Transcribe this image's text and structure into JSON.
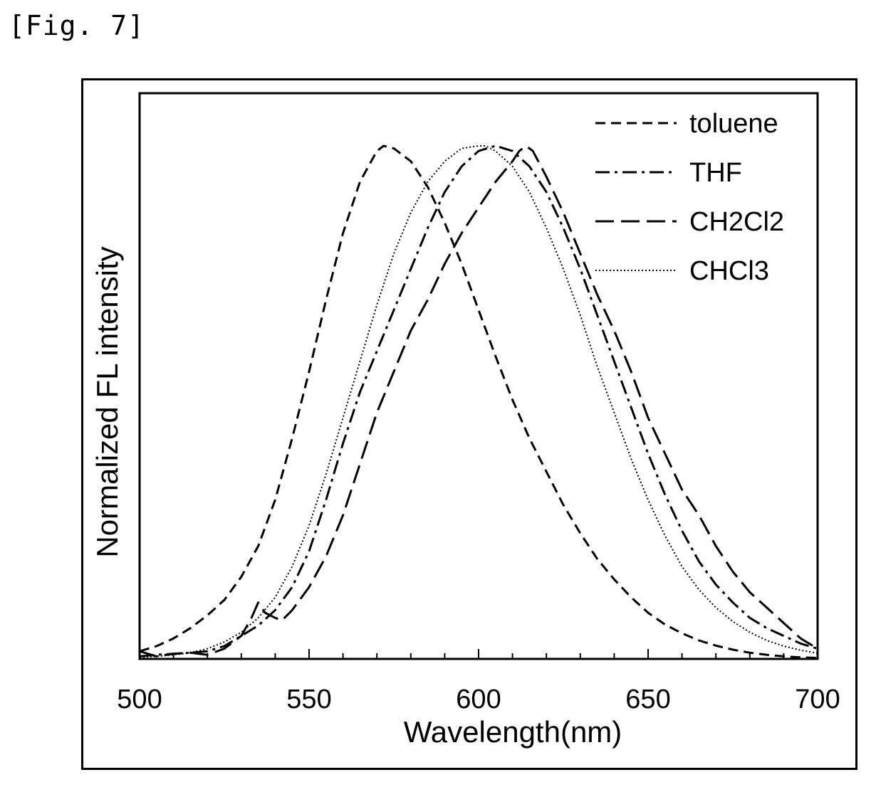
{
  "figure": {
    "label": "[Fig. 7]"
  },
  "chart_data": {
    "type": "line",
    "title": "",
    "xlabel": "Wavelength(nm)",
    "ylabel": "Normalized FL intensity",
    "xlim": [
      500,
      700
    ],
    "ylim": [
      0,
      1.0
    ],
    "x_ticks": [
      500,
      550,
      600,
      650,
      700
    ],
    "x_tick_labels": [
      "500",
      "550",
      "600",
      "650",
      "700"
    ],
    "grid": false,
    "legend_position": "top-right",
    "series": [
      {
        "name": "toluene",
        "style": "short-dash",
        "x": [
          500,
          505,
          510,
          515,
          520,
          525,
          530,
          535,
          540,
          545,
          550,
          555,
          560,
          565,
          570,
          572,
          575,
          580,
          585,
          590,
          595,
          600,
          605,
          610,
          615,
          620,
          625,
          630,
          635,
          640,
          645,
          650,
          655,
          660,
          665,
          670,
          675,
          680,
          685,
          690,
          695,
          700
        ],
        "y": [
          0.015,
          0.025,
          0.04,
          0.06,
          0.085,
          0.115,
          0.16,
          0.22,
          0.31,
          0.43,
          0.56,
          0.7,
          0.83,
          0.93,
          0.99,
          1.0,
          0.995,
          0.97,
          0.92,
          0.85,
          0.77,
          0.68,
          0.59,
          0.505,
          0.43,
          0.365,
          0.3,
          0.245,
          0.195,
          0.155,
          0.12,
          0.09,
          0.067,
          0.05,
          0.036,
          0.026,
          0.018,
          0.012,
          0.008,
          0.005,
          0.003,
          0.002
        ]
      },
      {
        "name": "THF",
        "style": "dash-dot",
        "x": [
          500,
          505,
          510,
          515,
          520,
          525,
          530,
          535,
          540,
          545,
          550,
          555,
          560,
          565,
          570,
          575,
          580,
          585,
          590,
          595,
          600,
          605,
          610,
          615,
          620,
          625,
          630,
          635,
          640,
          645,
          650,
          655,
          660,
          665,
          670,
          675,
          680,
          685,
          690,
          695,
          700
        ],
        "y": [
          0.005,
          0.008,
          0.01,
          0.012,
          0.015,
          0.025,
          0.045,
          0.065,
          0.095,
          0.14,
          0.21,
          0.31,
          0.42,
          0.52,
          0.6,
          0.68,
          0.76,
          0.84,
          0.91,
          0.96,
          0.99,
          1.0,
          0.99,
          0.96,
          0.91,
          0.84,
          0.76,
          0.67,
          0.58,
          0.49,
          0.4,
          0.32,
          0.25,
          0.19,
          0.145,
          0.11,
          0.08,
          0.06,
          0.045,
          0.03,
          0.02
        ]
      },
      {
        "name": "CH2Cl2",
        "style": "long-dash",
        "x": [
          500,
          505,
          510,
          515,
          520,
          525,
          530,
          533,
          535,
          537,
          540,
          542,
          545,
          550,
          555,
          560,
          565,
          570,
          575,
          580,
          585,
          590,
          595,
          600,
          605,
          610,
          612,
          614,
          616,
          620,
          625,
          630,
          635,
          640,
          645,
          650,
          655,
          660,
          665,
          670,
          675,
          680,
          685,
          690,
          695,
          700
        ],
        "y": [
          0.015,
          0.005,
          0.01,
          0.012,
          0.008,
          0.02,
          0.045,
          0.08,
          0.11,
          0.09,
          0.08,
          0.075,
          0.095,
          0.14,
          0.2,
          0.28,
          0.38,
          0.48,
          0.56,
          0.64,
          0.7,
          0.77,
          0.83,
          0.88,
          0.93,
          0.97,
          0.99,
          1.0,
          0.99,
          0.94,
          0.87,
          0.79,
          0.71,
          0.64,
          0.56,
          0.47,
          0.4,
          0.33,
          0.28,
          0.22,
          0.17,
          0.13,
          0.1,
          0.07,
          0.04,
          0.02
        ]
      },
      {
        "name": "CHCl3",
        "style": "dotted",
        "x": [
          500,
          505,
          510,
          515,
          520,
          525,
          530,
          535,
          540,
          545,
          550,
          555,
          560,
          565,
          570,
          575,
          580,
          585,
          590,
          595,
          600,
          602,
          605,
          610,
          615,
          620,
          625,
          630,
          635,
          640,
          645,
          650,
          655,
          660,
          665,
          670,
          675,
          680,
          685,
          690,
          695,
          700
        ],
        "y": [
          0.003,
          0.005,
          0.008,
          0.012,
          0.02,
          0.033,
          0.052,
          0.08,
          0.12,
          0.18,
          0.26,
          0.36,
          0.47,
          0.58,
          0.69,
          0.79,
          0.87,
          0.93,
          0.97,
          0.995,
          1.0,
          1.0,
          0.99,
          0.96,
          0.91,
          0.84,
          0.76,
          0.67,
          0.57,
          0.48,
          0.39,
          0.31,
          0.24,
          0.18,
          0.135,
          0.1,
          0.073,
          0.052,
          0.036,
          0.025,
          0.017,
          0.011
        ]
      }
    ]
  }
}
